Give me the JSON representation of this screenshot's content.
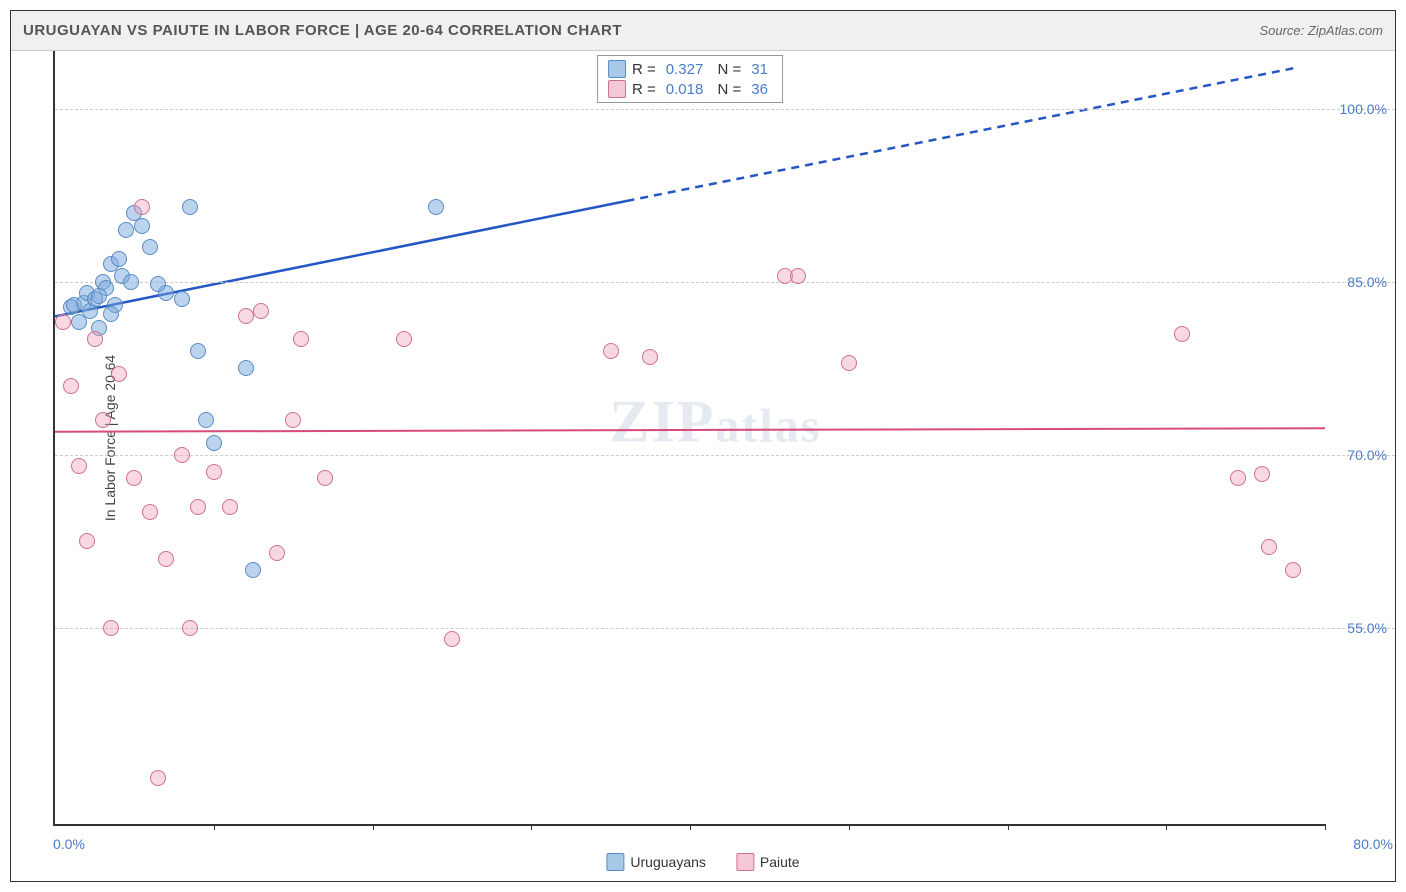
{
  "title": "URUGUAYAN VS PAIUTE IN LABOR FORCE | AGE 20-64 CORRELATION CHART",
  "source": "Source: ZipAtlas.com",
  "y_axis_title": "In Labor Force | Age 20-64",
  "watermark": "ZIPatlas",
  "chart": {
    "type": "scatter",
    "background_color": "#ffffff",
    "grid_color": "#cccccc",
    "axis_color": "#333333",
    "axis_label_color": "#4a7bc8",
    "xlim": [
      0,
      80
    ],
    "ylim": [
      38,
      105
    ],
    "x_ticks": [
      0,
      10,
      20,
      30,
      40,
      50,
      60,
      70,
      80
    ],
    "y_ticks": [
      55,
      70,
      85,
      100
    ],
    "x_tick_labels": {
      "0": "0.0%",
      "80": "80.0%"
    },
    "y_tick_labels": {
      "55": "55.0%",
      "70": "70.0%",
      "85": "85.0%",
      "100": "100.0%"
    },
    "marker_size": 16,
    "series": [
      {
        "name": "Uruguayans",
        "color_fill": "rgba(122, 168, 220, 0.5)",
        "color_stroke": "#5a8bc4",
        "swatch_fill": "#a8c8e8",
        "swatch_stroke": "#5a8bc4",
        "r": "0.327",
        "n": "31",
        "trend": {
          "x1": 0,
          "y1": 82,
          "x2": 36,
          "y2": 92,
          "x2_ext": 78,
          "y2_ext": 103.5,
          "color": "#2456c4",
          "width": 2.5
        },
        "points": [
          [
            1,
            82.8
          ],
          [
            1.2,
            83
          ],
          [
            1.5,
            81.5
          ],
          [
            1.8,
            83.2
          ],
          [
            2,
            84
          ],
          [
            2.2,
            82.5
          ],
          [
            2.5,
            83.5
          ],
          [
            2.8,
            81
          ],
          [
            3,
            85
          ],
          [
            3.2,
            84.5
          ],
          [
            3.5,
            86.5
          ],
          [
            3.8,
            83
          ],
          [
            4,
            87
          ],
          [
            4.2,
            85.5
          ],
          [
            4.5,
            89.5
          ],
          [
            5,
            91
          ],
          [
            5.5,
            89.8
          ],
          [
            6,
            88
          ],
          [
            7,
            84
          ],
          [
            8,
            83.5
          ],
          [
            8.5,
            91.5
          ],
          [
            9,
            79
          ],
          [
            9.5,
            73
          ],
          [
            10,
            71
          ],
          [
            12,
            77.5
          ],
          [
            12.5,
            60
          ],
          [
            24,
            91.5
          ],
          [
            2.8,
            83.8
          ],
          [
            3.5,
            82.2
          ],
          [
            4.8,
            85
          ],
          [
            6.5,
            84.8
          ]
        ]
      },
      {
        "name": "Paiute",
        "color_fill": "rgba(240, 160, 180, 0.4)",
        "color_stroke": "#d07090",
        "swatch_fill": "#f5c8d5",
        "swatch_stroke": "#d07090",
        "r": "0.018",
        "n": "36",
        "trend": {
          "x1": 0,
          "y1": 72,
          "x2": 80,
          "y2": 72.3,
          "color": "#d84a7a",
          "width": 2
        },
        "points": [
          [
            0.5,
            81.5
          ],
          [
            1,
            76
          ],
          [
            1.5,
            69
          ],
          [
            2,
            62.5
          ],
          [
            2.5,
            80
          ],
          [
            3,
            73
          ],
          [
            3.5,
            55
          ],
          [
            4,
            77
          ],
          [
            5,
            68
          ],
          [
            5.5,
            91.5
          ],
          [
            6,
            65
          ],
          [
            6.5,
            42
          ],
          [
            7,
            61
          ],
          [
            8,
            70
          ],
          [
            8.5,
            55
          ],
          [
            9,
            65.5
          ],
          [
            10,
            68.5
          ],
          [
            11,
            65.5
          ],
          [
            12,
            82
          ],
          [
            13,
            82.5
          ],
          [
            14,
            61.5
          ],
          [
            15,
            73
          ],
          [
            15.5,
            80
          ],
          [
            17,
            68
          ],
          [
            22,
            80
          ],
          [
            25,
            54
          ],
          [
            35,
            79
          ],
          [
            37.5,
            78.5
          ],
          [
            46,
            85.5
          ],
          [
            46.8,
            85.5
          ],
          [
            50,
            78
          ],
          [
            71,
            80.5
          ],
          [
            74.5,
            68
          ],
          [
            76,
            68.3
          ],
          [
            76.5,
            62
          ],
          [
            78,
            60
          ]
        ]
      }
    ]
  },
  "legend_bottom": [
    {
      "label": "Uruguayans",
      "fill": "#a8c8e8",
      "stroke": "#5a8bc4"
    },
    {
      "label": "Paiute",
      "fill": "#f5c8d5",
      "stroke": "#d07090"
    }
  ]
}
